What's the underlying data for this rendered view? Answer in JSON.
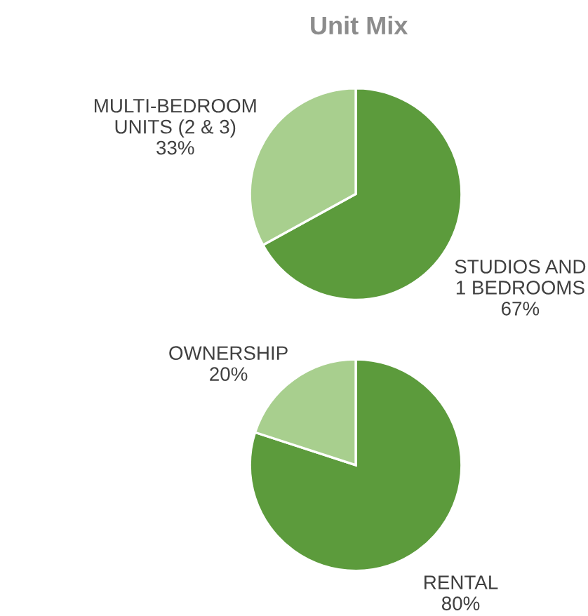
{
  "chart_data": [
    {
      "type": "pie",
      "title": "Unit Mix",
      "categories": [
        "STUDIOS AND\n1 BEDROOMS",
        "MULTI-BEDROOM\nUNITS (2 & 3)"
      ],
      "values": [
        67,
        33
      ],
      "colors": [
        "#5c9b3c",
        "#a8cf8e"
      ],
      "value_labels": [
        "67%",
        "33%"
      ]
    },
    {
      "type": "pie",
      "categories": [
        "RENTAL",
        "OWNERSHIP"
      ],
      "values": [
        80,
        20
      ],
      "colors": [
        "#5c9b3c",
        "#a8cf8e"
      ],
      "value_labels": [
        "80%",
        "20%"
      ]
    }
  ]
}
